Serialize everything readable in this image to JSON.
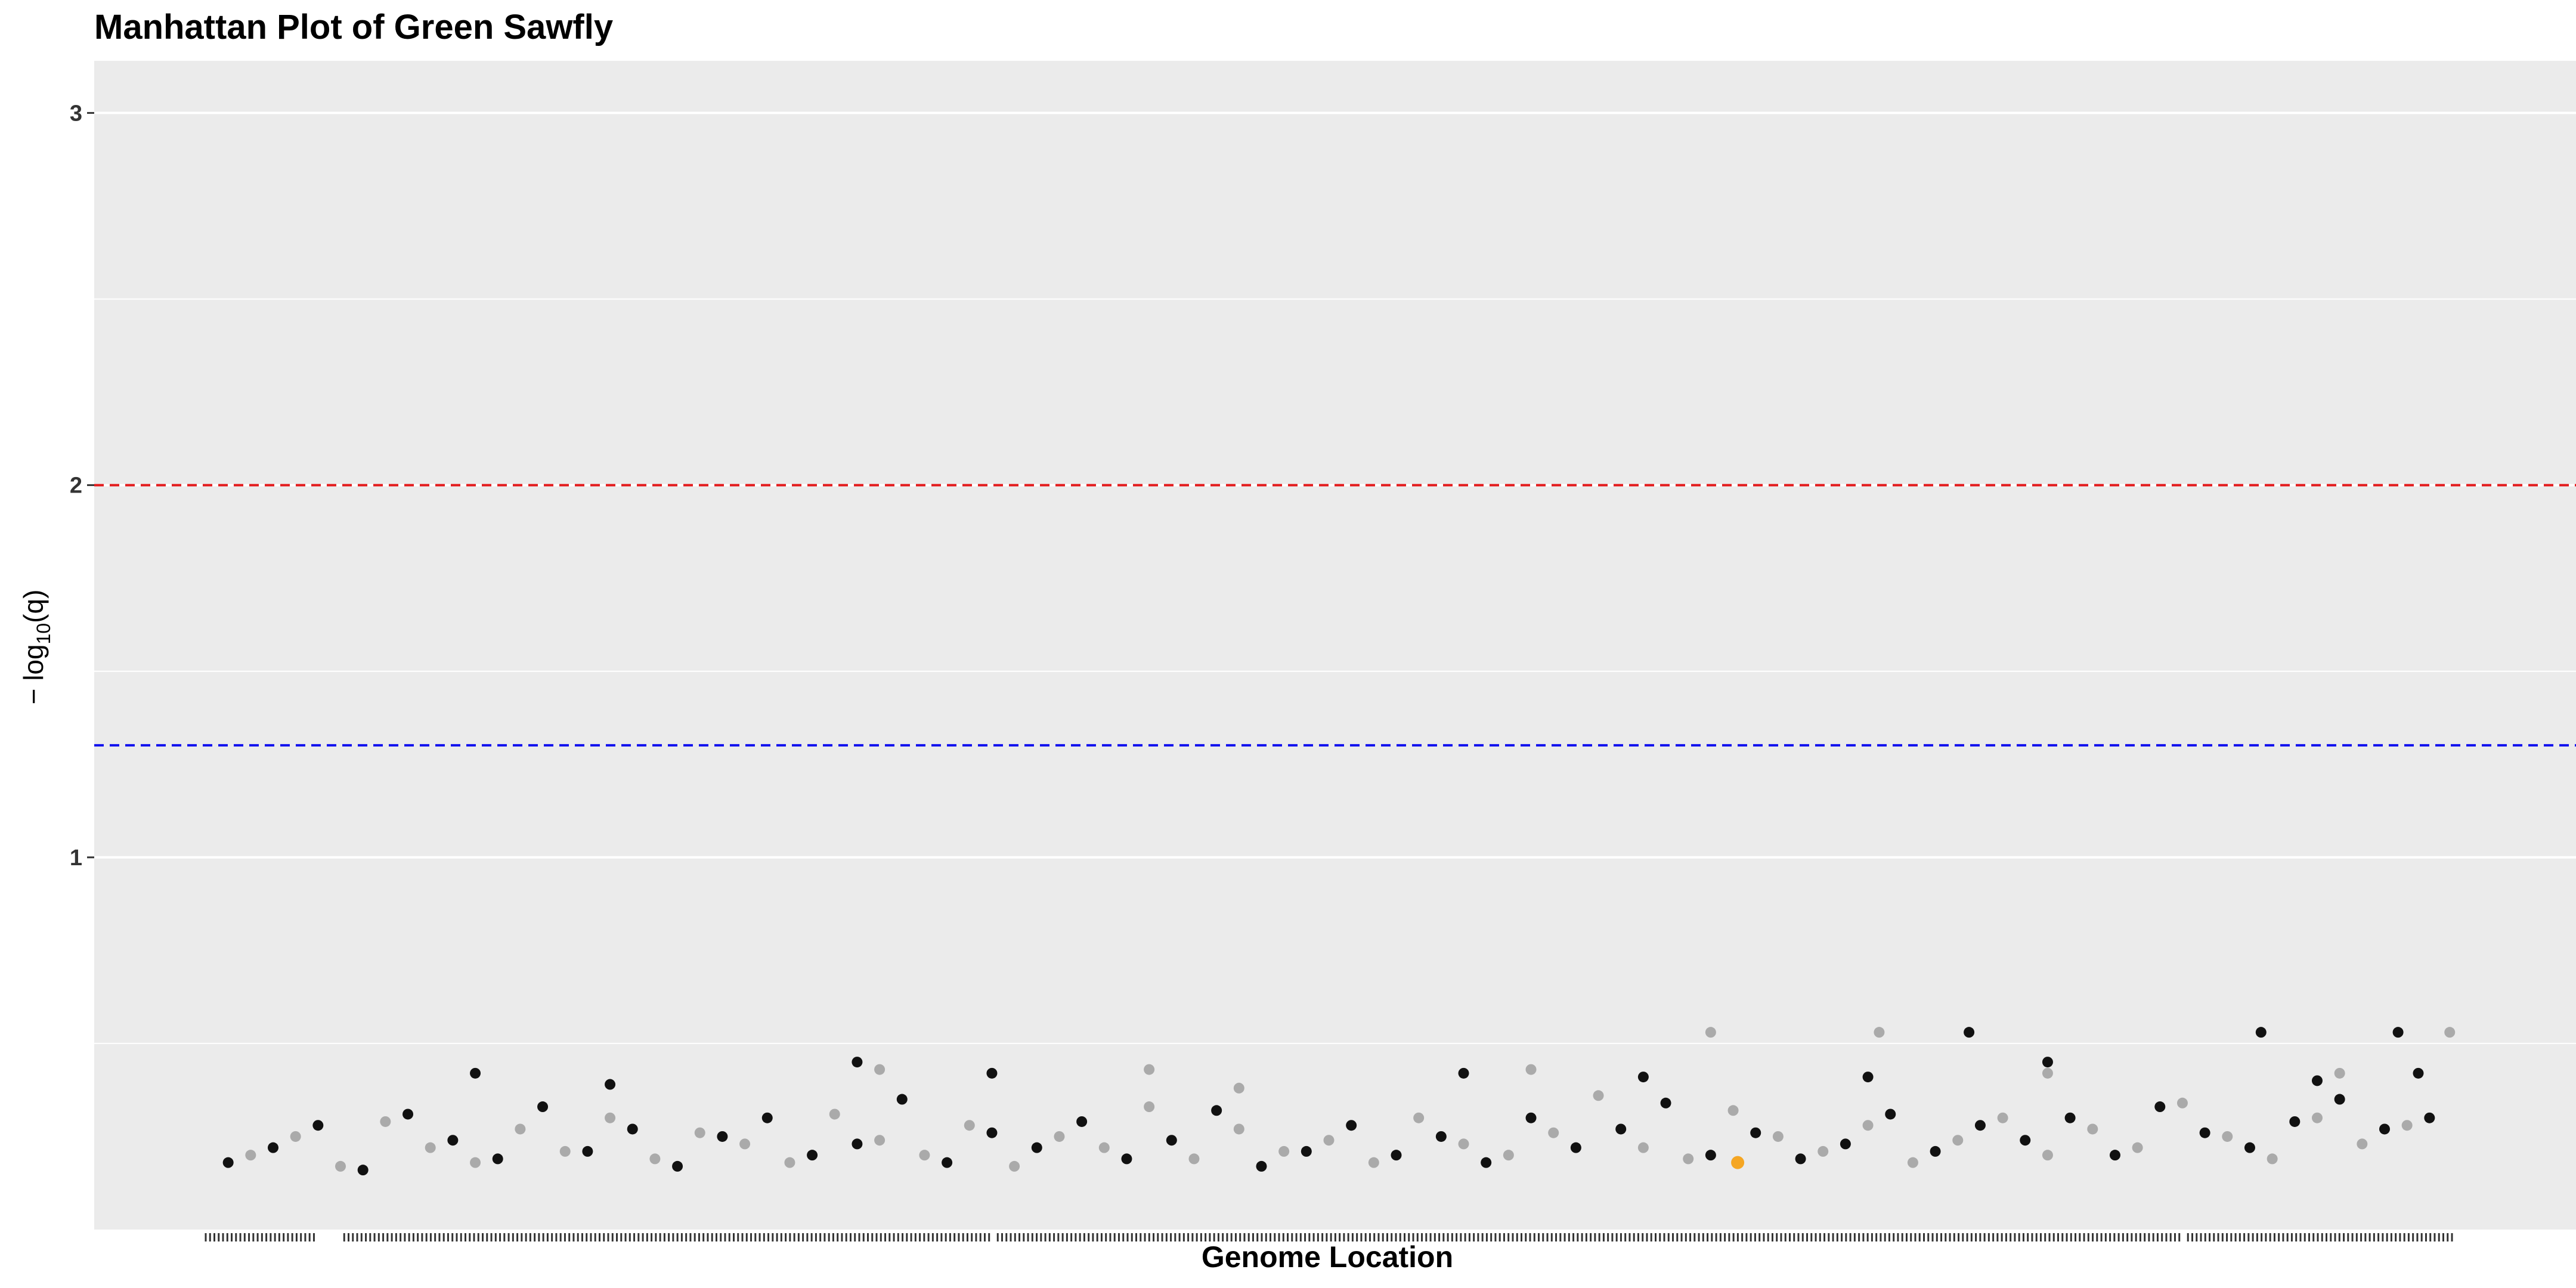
{
  "chart_data": {
    "type": "scatter",
    "title": "Manhattan Plot of Green Sawfly",
    "xlabel": "Genome Location",
    "ylabel": {
      "prefix": "− log",
      "subscript": "10",
      "suffix": "(q)"
    },
    "ylim": [
      0,
      3.14
    ],
    "yticks": [
      1,
      2,
      3
    ],
    "ygrid_minor": [
      0.5,
      1.5,
      2.5
    ],
    "grid": true,
    "legend": "none",
    "thresholds": [
      {
        "y": 2.0,
        "color": "#e31a1c",
        "style": "dashed"
      },
      {
        "y": 1.301,
        "color": "#1010ee",
        "style": "dashed"
      }
    ],
    "highlight": {
      "x": 0.682,
      "y": 0.18,
      "color": "#f5a623"
    },
    "colors": {
      "panel_bg": "#ebebeb",
      "grid": "#ffffff",
      "series_dark": "#111111",
      "series_light": "#aaaaaa",
      "rug": "#333333"
    },
    "series": [
      {
        "color": "series_dark",
        "x": [
          0.01,
          0.03,
          0.05,
          0.07,
          0.09,
          0.11,
          0.13,
          0.15,
          0.17,
          0.19,
          0.21,
          0.23,
          0.25,
          0.27,
          0.29,
          0.31,
          0.33,
          0.35,
          0.37,
          0.39,
          0.41,
          0.43,
          0.45,
          0.47,
          0.49,
          0.51,
          0.53,
          0.55,
          0.57,
          0.59,
          0.61,
          0.63,
          0.65,
          0.67,
          0.69,
          0.71,
          0.73,
          0.75,
          0.77,
          0.79,
          0.81,
          0.83,
          0.85,
          0.87,
          0.89,
          0.91,
          0.93,
          0.95,
          0.97,
          0.99,
          0.12,
          0.18,
          0.29,
          0.35,
          0.64,
          0.74,
          0.915,
          0.976,
          0.56,
          0.785,
          0.82,
          0.94,
          0.985
        ],
        "y": [
          0.18,
          0.22,
          0.28,
          0.16,
          0.31,
          0.24,
          0.19,
          0.33,
          0.21,
          0.27,
          0.17,
          0.25,
          0.3,
          0.2,
          0.23,
          0.35,
          0.18,
          0.26,
          0.22,
          0.29,
          0.19,
          0.24,
          0.32,
          0.17,
          0.21,
          0.28,
          0.2,
          0.25,
          0.18,
          0.3,
          0.22,
          0.27,
          0.34,
          0.2,
          0.26,
          0.19,
          0.23,
          0.31,
          0.21,
          0.28,
          0.24,
          0.3,
          0.2,
          0.33,
          0.26,
          0.22,
          0.29,
          0.35,
          0.27,
          0.3,
          0.42,
          0.39,
          0.45,
          0.42,
          0.41,
          0.41,
          0.53,
          0.53,
          0.42,
          0.53,
          0.45,
          0.4,
          0.42
        ]
      },
      {
        "color": "series_light",
        "x": [
          0.02,
          0.04,
          0.06,
          0.08,
          0.1,
          0.12,
          0.14,
          0.16,
          0.18,
          0.2,
          0.22,
          0.24,
          0.26,
          0.28,
          0.3,
          0.32,
          0.34,
          0.36,
          0.38,
          0.4,
          0.42,
          0.44,
          0.46,
          0.48,
          0.5,
          0.52,
          0.54,
          0.56,
          0.58,
          0.6,
          0.62,
          0.64,
          0.66,
          0.68,
          0.7,
          0.72,
          0.74,
          0.76,
          0.78,
          0.8,
          0.82,
          0.84,
          0.86,
          0.88,
          0.9,
          0.92,
          0.94,
          0.96,
          0.98,
          0.3,
          0.42,
          0.46,
          0.59,
          0.67,
          0.745,
          0.82,
          0.95,
          0.999
        ],
        "y": [
          0.2,
          0.25,
          0.17,
          0.29,
          0.22,
          0.18,
          0.27,
          0.21,
          0.3,
          0.19,
          0.26,
          0.23,
          0.18,
          0.31,
          0.24,
          0.2,
          0.28,
          0.17,
          0.25,
          0.22,
          0.33,
          0.19,
          0.27,
          0.21,
          0.24,
          0.18,
          0.3,
          0.23,
          0.2,
          0.26,
          0.36,
          0.22,
          0.19,
          0.32,
          0.25,
          0.21,
          0.28,
          0.18,
          0.24,
          0.3,
          0.2,
          0.27,
          0.22,
          0.34,
          0.25,
          0.19,
          0.3,
          0.23,
          0.28,
          0.43,
          0.43,
          0.38,
          0.43,
          0.53,
          0.53,
          0.42,
          0.42,
          0.53
        ]
      }
    ]
  }
}
